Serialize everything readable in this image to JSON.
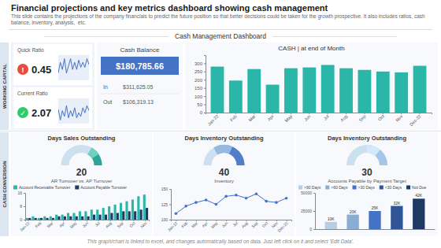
{
  "title": "Financial projections and key metrics dashboard showing cash management",
  "subtitle": "This slide contains the projections of the company financials to predict the future position so that better decisions could be taken for the growth prospective. It also includes ratios, cash balance, inventory, analysis,  etc.",
  "annotations": [
    "Cash Management Dashboard",
    "WORKING CAPITAL",
    "CASH CONVERSION",
    "This graph/chart is linked to excel, and changes automatically based on data. Just left click on it and select 'Edit Data'."
  ],
  "chart_data": [
    {
      "type": "kpi",
      "title": "Quick Ratio",
      "value": 0.45,
      "color": "#e74c3c",
      "annotations": [
        "!"
      ]
    },
    {
      "type": "line",
      "values": [
        0.5,
        0.65,
        0.55,
        0.7,
        0.5,
        0.6,
        0.7,
        0.55,
        0.65,
        0.55,
        0.68,
        0.58,
        0.65,
        0.58,
        0.7,
        0.62
      ],
      "color": "#4472c4",
      "ylim": [
        0.4,
        0.75
      ],
      "tick_labels": false
    },
    {
      "type": "kpi",
      "title": "Current Ratio",
      "value": 2.07,
      "color": "#2ecc71",
      "annotations": [
        "✓"
      ]
    },
    {
      "type": "line",
      "values": [
        0.6,
        0.45,
        0.58,
        0.5,
        0.65,
        0.48,
        0.58,
        0.5,
        0.62,
        0.48,
        0.55,
        0.5,
        0.62,
        0.55,
        0.65,
        0.58
      ],
      "color": "#4472c4",
      "ylim": [
        0.4,
        0.75
      ],
      "tick_labels": false
    },
    {
      "type": "kpi",
      "title": "Cash Balance",
      "value": 180785.66,
      "value_label": "$180,785.66",
      "color": "#4472c4",
      "categories": [
        "In",
        "Out"
      ],
      "values": [
        311625.05,
        106319.13
      ],
      "value_labels": [
        "$311,625.05",
        "$106,319.13"
      ]
    },
    {
      "type": "bar",
      "title": "CASH | at end of Month",
      "categories": [
        "Jan-22",
        "Feb",
        "Mar",
        "Apr",
        "May",
        "Jun",
        "Jul",
        "Aug",
        "Sep",
        "Oct",
        "Nov",
        "Dec-22"
      ],
      "values": [
        280,
        195,
        265,
        170,
        270,
        275,
        290,
        270,
        260,
        250,
        245,
        285
      ],
      "color": "#2ab7a9",
      "ylim": [
        0,
        350
      ],
      "yticks": [
        0,
        50,
        100,
        150,
        200,
        250,
        300
      ]
    },
    {
      "type": "gauge",
      "title": "Days Sales Outstanding",
      "value": 20,
      "max": 60,
      "colors": [
        "#1a9e8f",
        "#7ed8c8",
        "#cce0f0"
      ]
    },
    {
      "type": "bar",
      "title": "AR Turnover vs. AP Turnover",
      "categories": [
        "Jan-22",
        null,
        "Feb",
        null,
        "Mar",
        null,
        "Apr",
        null,
        "May",
        null,
        "Jun",
        null,
        "Jul",
        null,
        "Aug",
        null,
        "Sep",
        null,
        "Oct",
        null,
        "Nov"
      ],
      "series": [
        {
          "name": "Account Receivable Turnover",
          "color": "#2ab7a9",
          "values": [
            1,
            2,
            1,
            2,
            2,
            3,
            3,
            4,
            4,
            5,
            5,
            6,
            6,
            7,
            8,
            9,
            10,
            11,
            12,
            14,
            15
          ]
        },
        {
          "name": "Account Payable Turnover",
          "color": "#1f3864",
          "values": [
            1,
            1,
            1,
            1,
            1,
            2,
            2,
            2,
            2,
            2,
            2,
            3,
            3,
            3,
            4,
            4,
            5,
            5,
            5,
            6,
            7
          ]
        }
      ],
      "ylim": [
        0,
        16
      ],
      "yticks": [
        0,
        8,
        16
      ],
      "legend": "upper left"
    },
    {
      "type": "gauge",
      "title": "Days Inventory Outstanding",
      "value": 40,
      "max": 60,
      "colors": [
        "#4472c4",
        "#a0c4e8",
        "#cce0f0"
      ]
    },
    {
      "type": "line",
      "title": "Inventory",
      "categories": [
        "Jan-22",
        "Feb",
        "Mar",
        "Apr",
        "May",
        "Jun",
        "Jul",
        "Aug",
        "Sep",
        "Oct",
        "Nov",
        "Dec-22"
      ],
      "values": [
        110,
        122,
        128,
        132,
        125,
        138,
        140,
        135,
        142,
        130,
        128,
        135
      ],
      "color": "#4472c4",
      "marker": "circle",
      "ylim": [
        100,
        150
      ],
      "yticks": [
        100,
        125,
        150
      ]
    },
    {
      "type": "gauge",
      "title": "Days Inventory Outstanding",
      "value": 30,
      "max": 60,
      "colors": [
        "#a0c4e8",
        "#ddeeff",
        "#cce0f0"
      ]
    },
    {
      "type": "bar",
      "title": "Accounts Payable by Payment Target",
      "categories": [
        ">90 Days",
        ">60 Days",
        ">30 Days",
        "<30 Days",
        "Not Due"
      ],
      "values": [
        10000,
        20000,
        25000,
        32000,
        42000
      ],
      "value_labels": [
        "10K",
        "20K",
        "25K",
        "32K",
        "42K"
      ],
      "colors": [
        "#b8cce4",
        "#8aadd4",
        "#4472c4",
        "#2f5597",
        "#1f3864"
      ],
      "data_labels": true,
      "ylim": [
        0,
        50000
      ],
      "yticks": [
        0,
        25000,
        50000
      ],
      "tick_labels": "y",
      "legend": "upper left"
    }
  ]
}
